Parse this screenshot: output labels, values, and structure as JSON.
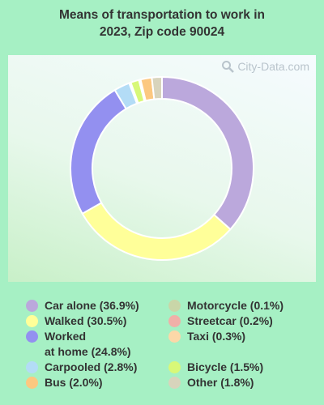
{
  "title_line1": "Means of transportation to work in",
  "title_line2": "2023, Zip code 90024",
  "watermark": "City-Data.com",
  "chart_data": {
    "type": "pie",
    "style": "donut",
    "title": "Means of transportation to work in 2023, Zip code 90024",
    "legend_placement": "bottom",
    "slices": [
      {
        "label": "Car alone",
        "value": 36.9,
        "legend": "Car alone (36.9%)",
        "color": "#bba8dc"
      },
      {
        "label": "Walked",
        "value": 30.5,
        "legend": "Walked (30.5%)",
        "color": "#ffff99"
      },
      {
        "label": "Worked at home",
        "value": 24.8,
        "legend_line1": "Worked",
        "legend_line2": "at home (24.8%)",
        "color": "#9390f0"
      },
      {
        "label": "Carpooled",
        "value": 2.8,
        "legend": "Carpooled (2.8%)",
        "color": "#b3dcf6"
      },
      {
        "label": "Motorcycle",
        "value": 0.1,
        "legend": "Motorcycle (0.1%)",
        "color": "#c9d6a8"
      },
      {
        "label": "Streetcar",
        "value": 0.2,
        "legend": "Streetcar (0.2%)",
        "color": "#f0b0a8"
      },
      {
        "label": "Bicycle",
        "value": 1.5,
        "legend": "Bicycle (1.5%)",
        "color": "#d8f878"
      },
      {
        "label": "Taxi",
        "value": 0.3,
        "legend": "Taxi (0.3%)",
        "color": "#fcd8a8"
      },
      {
        "label": "Bus",
        "value": 2.0,
        "legend": "Bus (2.0%)",
        "color": "#fcc880"
      },
      {
        "label": "Other",
        "value": 1.8,
        "legend": "Other (1.8%)",
        "color": "#d8d4bc"
      }
    ]
  }
}
